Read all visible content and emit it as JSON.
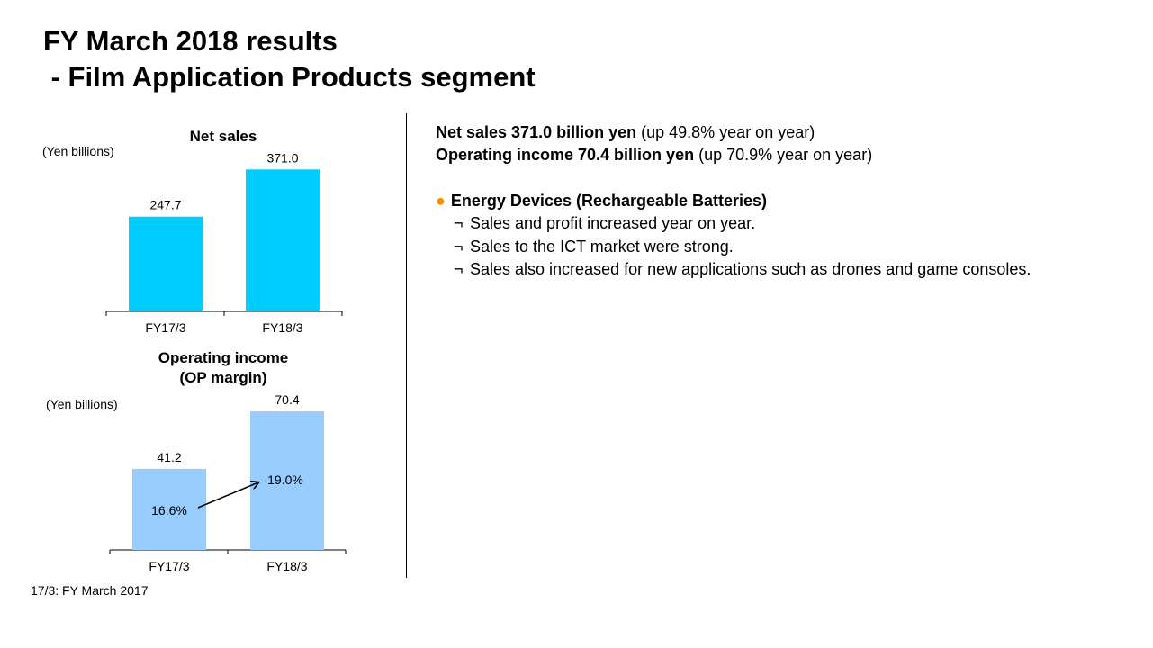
{
  "slide": {
    "title": "FY March 2018 results\n - Film Application Products segment",
    "footnote": "17/3: FY March 2017"
  },
  "chart_data": [
    {
      "type": "bar",
      "title": "Net sales",
      "unit_label": "(Yen billions)",
      "categories": [
        "FY17/3",
        "FY18/3"
      ],
      "values": [
        247.7,
        371.0
      ],
      "value_labels": [
        "247.7",
        "371.0"
      ],
      "color": "#00ccff",
      "ylim": [
        0,
        400
      ]
    },
    {
      "type": "bar",
      "title": "Operating income\n(OP margin)",
      "unit_label": "(Yen billions)",
      "categories": [
        "FY17/3",
        "FY18/3"
      ],
      "values": [
        41.2,
        70.4
      ],
      "value_labels": [
        "41.2",
        "70.4"
      ],
      "margins": [
        "16.6%",
        "19.0%"
      ],
      "color": "#99ccff",
      "ylim": [
        0,
        75
      ]
    }
  ],
  "summary": {
    "net_sales_bold": "Net sales 371.0 billion yen",
    "net_sales_note": " (up 49.8% year on year)",
    "op_income_bold": "Operating income 70.4 billion yen",
    "op_income_note": " (up 70.9% year on year)"
  },
  "bullet": {
    "marker": "●",
    "heading": "Energy Devices (Rechargeable Batteries)",
    "sub_marker": "¬",
    "items": [
      "Sales and profit increased year on year.",
      "Sales to the ICT market were strong.",
      "Sales also increased for new applications such as drones and game consoles."
    ]
  },
  "colors": {
    "bullet_accent": "#f39200"
  }
}
